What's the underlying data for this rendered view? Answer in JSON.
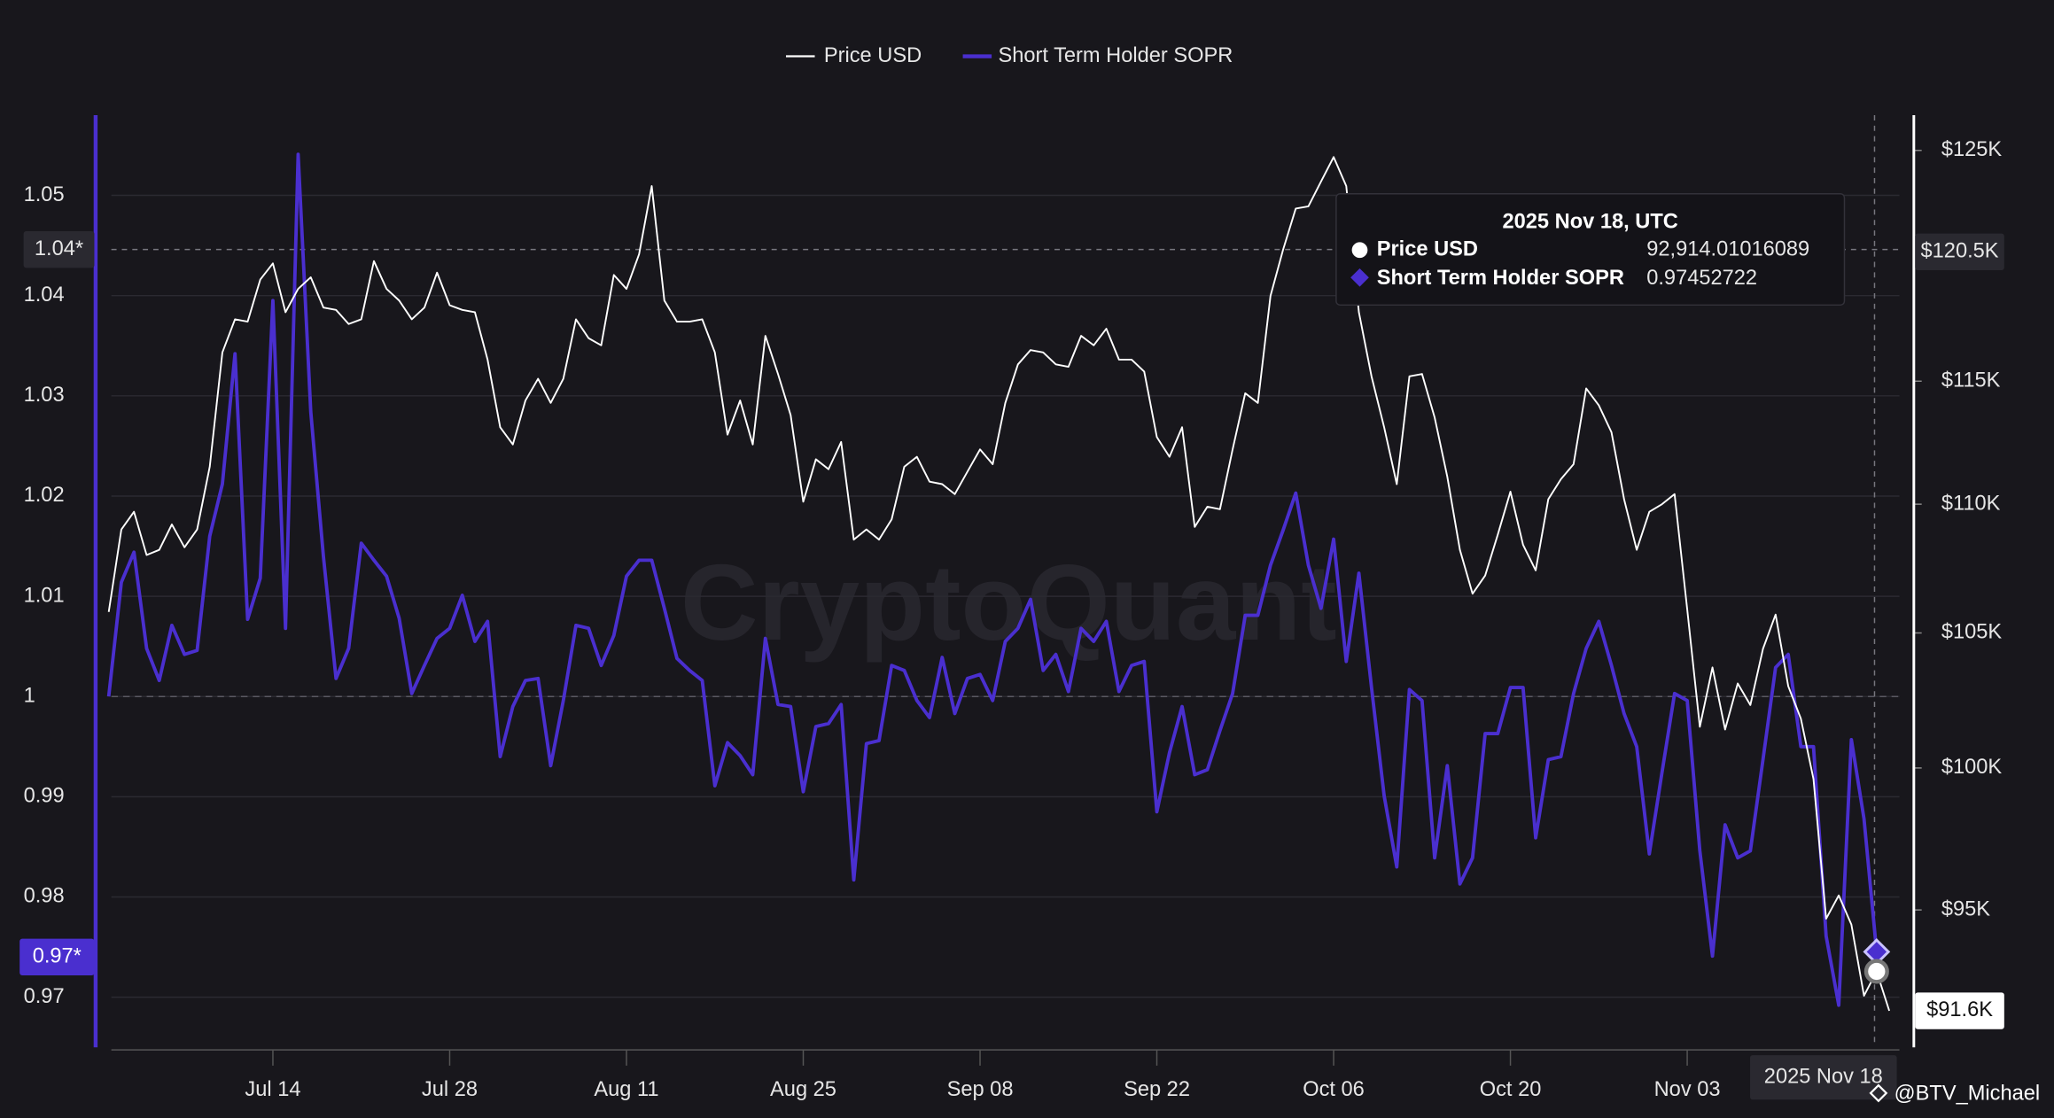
{
  "chart_data": {
    "type": "line",
    "legend": "top",
    "watermark": "CryptoQuant",
    "credit": "@BTV_Michael",
    "categories": [
      null,
      null,
      null,
      null,
      null,
      null,
      null,
      null,
      null,
      null,
      null,
      null,
      null,
      "Jul 14",
      null,
      null,
      null,
      null,
      null,
      null,
      null,
      null,
      null,
      null,
      null,
      null,
      null,
      "Jul 28",
      null,
      null,
      null,
      null,
      null,
      null,
      null,
      null,
      null,
      null,
      null,
      null,
      null,
      "Aug 11",
      null,
      null,
      null,
      null,
      null,
      null,
      null,
      null,
      null,
      null,
      null,
      null,
      null,
      "Aug 25",
      null,
      null,
      null,
      null,
      null,
      null,
      null,
      null,
      null,
      null,
      null,
      null,
      null,
      "Sep 08",
      null,
      null,
      null,
      null,
      null,
      null,
      null,
      null,
      null,
      null,
      null,
      null,
      null,
      "Sep 22",
      null,
      null,
      null,
      null,
      null,
      null,
      null,
      null,
      null,
      null,
      null,
      null,
      null,
      "Oct 06",
      null,
      null,
      null,
      null,
      null,
      null,
      null,
      null,
      null,
      null,
      null,
      null,
      null,
      "Oct 20",
      null,
      null,
      null,
      null,
      null,
      null,
      null,
      null,
      null,
      null,
      null,
      null,
      null,
      "Nov 03",
      null,
      null,
      null,
      null,
      null,
      null,
      null,
      null,
      null,
      null,
      null,
      null,
      null,
      null,
      null,
      null
    ],
    "series": [
      {
        "name": "Price USD",
        "color": "#ffffff",
        "axis": "y2",
        "values": [
          105800,
          109000,
          109700,
          108000,
          108200,
          109200,
          108300,
          109000,
          111500,
          116200,
          117600,
          117500,
          119300,
          120000,
          117900,
          118900,
          119400,
          118100,
          118000,
          117400,
          117600,
          120100,
          118900,
          118400,
          117600,
          118100,
          119600,
          118200,
          118000,
          117900,
          115900,
          113100,
          112400,
          114200,
          115100,
          114100,
          115100,
          117600,
          116800,
          116500,
          119500,
          118900,
          120400,
          123400,
          118400,
          117500,
          117500,
          117600,
          116200,
          112800,
          114200,
          112400,
          116900,
          115300,
          113600,
          110100,
          111800,
          111400,
          112500,
          108600,
          109000,
          108600,
          109400,
          111500,
          111900,
          110900,
          110800,
          110400,
          111300,
          112200,
          111600,
          114100,
          115700,
          116300,
          116200,
          115700,
          115600,
          116900,
          116500,
          117200,
          115900,
          115900,
          115400,
          112700,
          111900,
          113100,
          109100,
          109900,
          109800,
          112200,
          114500,
          114100,
          118600,
          120600,
          122400,
          122500,
          123600,
          124700,
          123400,
          117900,
          115200,
          113100,
          110800,
          115200,
          115300,
          113500,
          111100,
          108200,
          106500,
          107200,
          108800,
          110500,
          108400,
          107400,
          110200,
          111000,
          111600,
          114700,
          114000,
          112900,
          110200,
          108200,
          109700,
          110000,
          110400,
          105900,
          101500,
          103700,
          101400,
          103100,
          102300,
          104400,
          105700,
          103000,
          101800,
          99600,
          94700,
          95500,
          94500,
          92100,
          92914.01016089,
          91600
        ]
      },
      {
        "name": "Short Term Holder SOPR",
        "color": "#4a2fcf",
        "values": [
          1,
          1.0114,
          1.0144,
          1.0048,
          1.0016,
          1.0071,
          1.0042,
          1.0046,
          1.016,
          1.0212,
          1.0342,
          1.0077,
          1.0118,
          1.0395,
          1.0068,
          1.0541,
          1.0284,
          1.014,
          1.0018,
          1.0048,
          1.0153,
          1.0136,
          1.012,
          1.0078,
          1.0003,
          1.0031,
          1.0058,
          1.0068,
          1.0101,
          1.0055,
          1.0075,
          0.994,
          0.999,
          1.0016,
          1.0018,
          0.9931,
          0.9996,
          1.0071,
          1.0068,
          1.0031,
          1.0061,
          1.012,
          1.0136,
          1.0136,
          1.0088,
          1.0038,
          1.0026,
          1.0016,
          0.9911,
          0.9954,
          0.9941,
          0.9922,
          1.0058,
          0.9992,
          0.999,
          0.9905,
          0.997,
          0.9973,
          0.9992,
          0.9817,
          0.9953,
          0.9956,
          1.0031,
          1.0026,
          0.9996,
          0.9979,
          1.0039,
          0.9983,
          1.0018,
          1.0022,
          0.9996,
          1.0055,
          1.0068,
          1.0097,
          1.0026,
          1.0042,
          1.0005,
          1.0068,
          1.0055,
          1.0075,
          1.0005,
          1.0031,
          1.0035,
          0.9885,
          0.9944,
          0.999,
          0.9922,
          0.9927,
          0.9966,
          1.0003,
          1.0081,
          1.0081,
          1.0131,
          1.0166,
          1.0203,
          1.0131,
          1.0088,
          1.0157,
          1.0035,
          1.0123,
          1.0009,
          0.9901,
          0.983,
          1.0007,
          0.9996,
          0.9839,
          0.9931,
          0.9813,
          0.9839,
          0.9963,
          0.9963,
          1.0009,
          1.0009,
          0.9859,
          0.9937,
          0.994,
          1.0003,
          1.0048,
          1.0075,
          1.0031,
          0.9983,
          0.995,
          0.9843,
          0.9924,
          1.0003,
          0.9996,
          0.9846,
          0.9741,
          0.9872,
          0.9839,
          0.9846,
          0.9937,
          1.0029,
          1.0042,
          0.995,
          0.995,
          0.9761,
          0.9692,
          0.9957,
          0.9878,
          0.97452722,
          null
        ]
      }
    ],
    "ylim": [
      0.965,
      1.058
    ],
    "yticks": [
      0.97,
      0.98,
      0.99,
      1,
      1.01,
      1.02,
      1.03,
      1.04,
      1.05
    ],
    "y2lim": [
      90400,
      126600
    ],
    "y2scale": "log",
    "y2ticks": [
      {
        "value": 95000,
        "label": "$95K"
      },
      {
        "value": 100000,
        "label": "$100K"
      },
      {
        "value": 105000,
        "label": "$105K"
      },
      {
        "value": 110000,
        "label": "$110K"
      },
      {
        "value": 115000,
        "label": "$115K"
      },
      {
        "value": 125000,
        "label": "$125K"
      }
    ],
    "grid": true,
    "baseline": 1,
    "crosshair": {
      "x_label": "2025 Nov 18",
      "y": 1.0446,
      "y_label": "1.04*",
      "y2": 120500,
      "y2_label": "$120.5K"
    },
    "last_labels": {
      "y_label": "0.97*",
      "y2_label": "$91.6K"
    },
    "tooltip": {
      "title": "2025 Nov 18, UTC",
      "value_labels": [
        "92,914.01016089",
        "0.97452722"
      ]
    }
  }
}
